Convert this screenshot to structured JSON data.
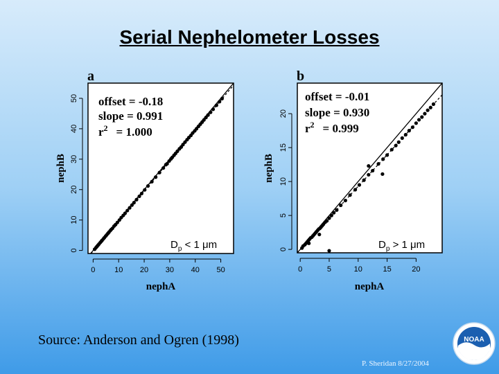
{
  "slide": {
    "title": "Serial Nephelometer Losses",
    "source": "Source: Anderson and Ogren (1998)",
    "footer": "P. Sheridan  8/27/2004",
    "logo_text": "NOAA"
  },
  "chart_data": [
    {
      "type": "scatter",
      "panel_label": "a",
      "xlabel": "nephA",
      "ylabel": "nephB",
      "xlim": [
        -2,
        55
      ],
      "ylim": [
        -1,
        55
      ],
      "xticks": [
        0,
        10,
        20,
        30,
        40,
        50
      ],
      "yticks": [
        0,
        10,
        20,
        30,
        40,
        50
      ],
      "annotations": {
        "offset": "offset = -0.18",
        "slope": "slope = 0.991",
        "r2_prefix": "r",
        "r2_sup": "2",
        "r2_value": "= 1.000"
      },
      "size_label": {
        "prefix": "D",
        "sub": "p",
        "suffix": " < 1 ",
        "unit": "μm"
      },
      "fit": {
        "offset": -0.18,
        "slope": 0.991
      },
      "grid": false,
      "points": [
        [
          0.6,
          0.4
        ],
        [
          1.1,
          0.9
        ],
        [
          1.5,
          1.3
        ],
        [
          1.9,
          1.7
        ],
        [
          2.3,
          2.1
        ],
        [
          2.8,
          2.6
        ],
        [
          3.2,
          3.0
        ],
        [
          3.5,
          3.3
        ],
        [
          4.0,
          3.8
        ],
        [
          4.4,
          4.2
        ],
        [
          4.9,
          4.7
        ],
        [
          5.3,
          5.1
        ],
        [
          5.8,
          5.6
        ],
        [
          6.2,
          6.0
        ],
        [
          6.7,
          6.5
        ],
        [
          7.1,
          6.9
        ],
        [
          7.6,
          7.3
        ],
        [
          8.2,
          8.0
        ],
        [
          8.8,
          8.5
        ],
        [
          9.5,
          9.2
        ],
        [
          10.3,
          10.0
        ],
        [
          11.0,
          10.8
        ],
        [
          11.8,
          11.5
        ],
        [
          12.5,
          12.2
        ],
        [
          13.4,
          13.1
        ],
        [
          14.3,
          14.0
        ],
        [
          15.2,
          14.9
        ],
        [
          16.0,
          15.7
        ],
        [
          17.0,
          16.7
        ],
        [
          18.1,
          17.8
        ],
        [
          19.0,
          18.7
        ],
        [
          20.2,
          19.9
        ],
        [
          21.5,
          21.2
        ],
        [
          23.0,
          22.6
        ],
        [
          24.5,
          24.1
        ],
        [
          26.0,
          25.6
        ],
        [
          27.5,
          27.1
        ],
        [
          28.5,
          28.2
        ],
        [
          29.0,
          28.5
        ],
        [
          29.8,
          29.4
        ],
        [
          30.5,
          30.1
        ],
        [
          31.0,
          30.6
        ],
        [
          31.7,
          31.3
        ],
        [
          32.3,
          31.9
        ],
        [
          33.0,
          32.6
        ],
        [
          33.8,
          33.4
        ],
        [
          34.5,
          34.0
        ],
        [
          35.2,
          34.8
        ],
        [
          36.0,
          35.6
        ],
        [
          36.8,
          36.4
        ],
        [
          37.5,
          37.1
        ],
        [
          38.3,
          37.8
        ],
        [
          39.0,
          38.6
        ],
        [
          39.8,
          39.3
        ],
        [
          40.5,
          40.0
        ],
        [
          41.3,
          40.8
        ],
        [
          42.0,
          41.5
        ],
        [
          42.7,
          42.2
        ],
        [
          43.4,
          42.9
        ],
        [
          44.2,
          43.7
        ],
        [
          45.0,
          44.5
        ],
        [
          46.0,
          45.4
        ],
        [
          47.0,
          46.4
        ],
        [
          48.3,
          47.7
        ],
        [
          49.5,
          48.9
        ],
        [
          50.5,
          49.9
        ]
      ]
    },
    {
      "type": "scatter",
      "panel_label": "b",
      "xlabel": "nephA",
      "ylabel": "nephB",
      "xlim": [
        -0.5,
        24.5
      ],
      "ylim": [
        -0.5,
        24.5
      ],
      "xticks": [
        0,
        5,
        10,
        15,
        20
      ],
      "yticks": [
        0,
        5,
        10,
        15,
        20
      ],
      "annotations": {
        "offset": "offset = -0.01",
        "slope": "slope = 0.930",
        "r2_prefix": "r",
        "r2_sup": "2",
        "r2_value": "= 0.999"
      },
      "size_label": {
        "prefix": "D",
        "sub": "p",
        "suffix": " > 1 ",
        "unit": "μm"
      },
      "fit": {
        "offset": -0.01,
        "slope": 0.93
      },
      "grid": false,
      "points": [
        [
          0.3,
          0.2
        ],
        [
          0.5,
          0.5
        ],
        [
          0.8,
          0.7
        ],
        [
          1.0,
          0.9
        ],
        [
          1.2,
          1.1
        ],
        [
          1.4,
          1.3
        ],
        [
          1.6,
          1.5
        ],
        [
          1.8,
          1.7
        ],
        [
          2.0,
          1.8
        ],
        [
          2.2,
          2.0
        ],
        [
          2.4,
          2.2
        ],
        [
          2.6,
          2.4
        ],
        [
          2.8,
          2.6
        ],
        [
          3.0,
          2.8
        ],
        [
          3.2,
          3.0
        ],
        [
          3.4,
          3.1
        ],
        [
          3.6,
          3.3
        ],
        [
          3.8,
          3.5
        ],
        [
          4.0,
          3.7
        ],
        [
          4.3,
          4.0
        ],
        [
          4.6,
          4.2
        ],
        [
          5.0,
          4.6
        ],
        [
          5.4,
          5.0
        ],
        [
          5.8,
          5.4
        ],
        [
          6.3,
          5.8
        ],
        [
          7.0,
          6.5
        ],
        [
          7.8,
          7.2
        ],
        [
          8.6,
          8.0
        ],
        [
          9.5,
          8.8
        ],
        [
          10.2,
          9.5
        ],
        [
          11.0,
          10.2
        ],
        [
          11.8,
          11.0
        ],
        [
          12.5,
          11.6
        ],
        [
          13.5,
          12.6
        ],
        [
          14.3,
          13.3
        ],
        [
          15.0,
          13.9
        ],
        [
          15.8,
          14.7
        ],
        [
          16.5,
          15.3
        ],
        [
          17.0,
          15.8
        ],
        [
          17.6,
          16.4
        ],
        [
          18.2,
          16.9
        ],
        [
          18.8,
          17.5
        ],
        [
          19.4,
          18.0
        ],
        [
          20.0,
          18.6
        ],
        [
          20.5,
          19.1
        ],
        [
          21.0,
          19.5
        ],
        [
          21.5,
          20.0
        ],
        [
          22.0,
          20.5
        ],
        [
          22.5,
          20.9
        ],
        [
          23.0,
          21.4
        ],
        [
          1.5,
          0.9
        ],
        [
          3.3,
          2.2
        ],
        [
          5.0,
          -0.2
        ],
        [
          11.8,
          12.3
        ],
        [
          14.2,
          11.1
        ]
      ]
    }
  ]
}
